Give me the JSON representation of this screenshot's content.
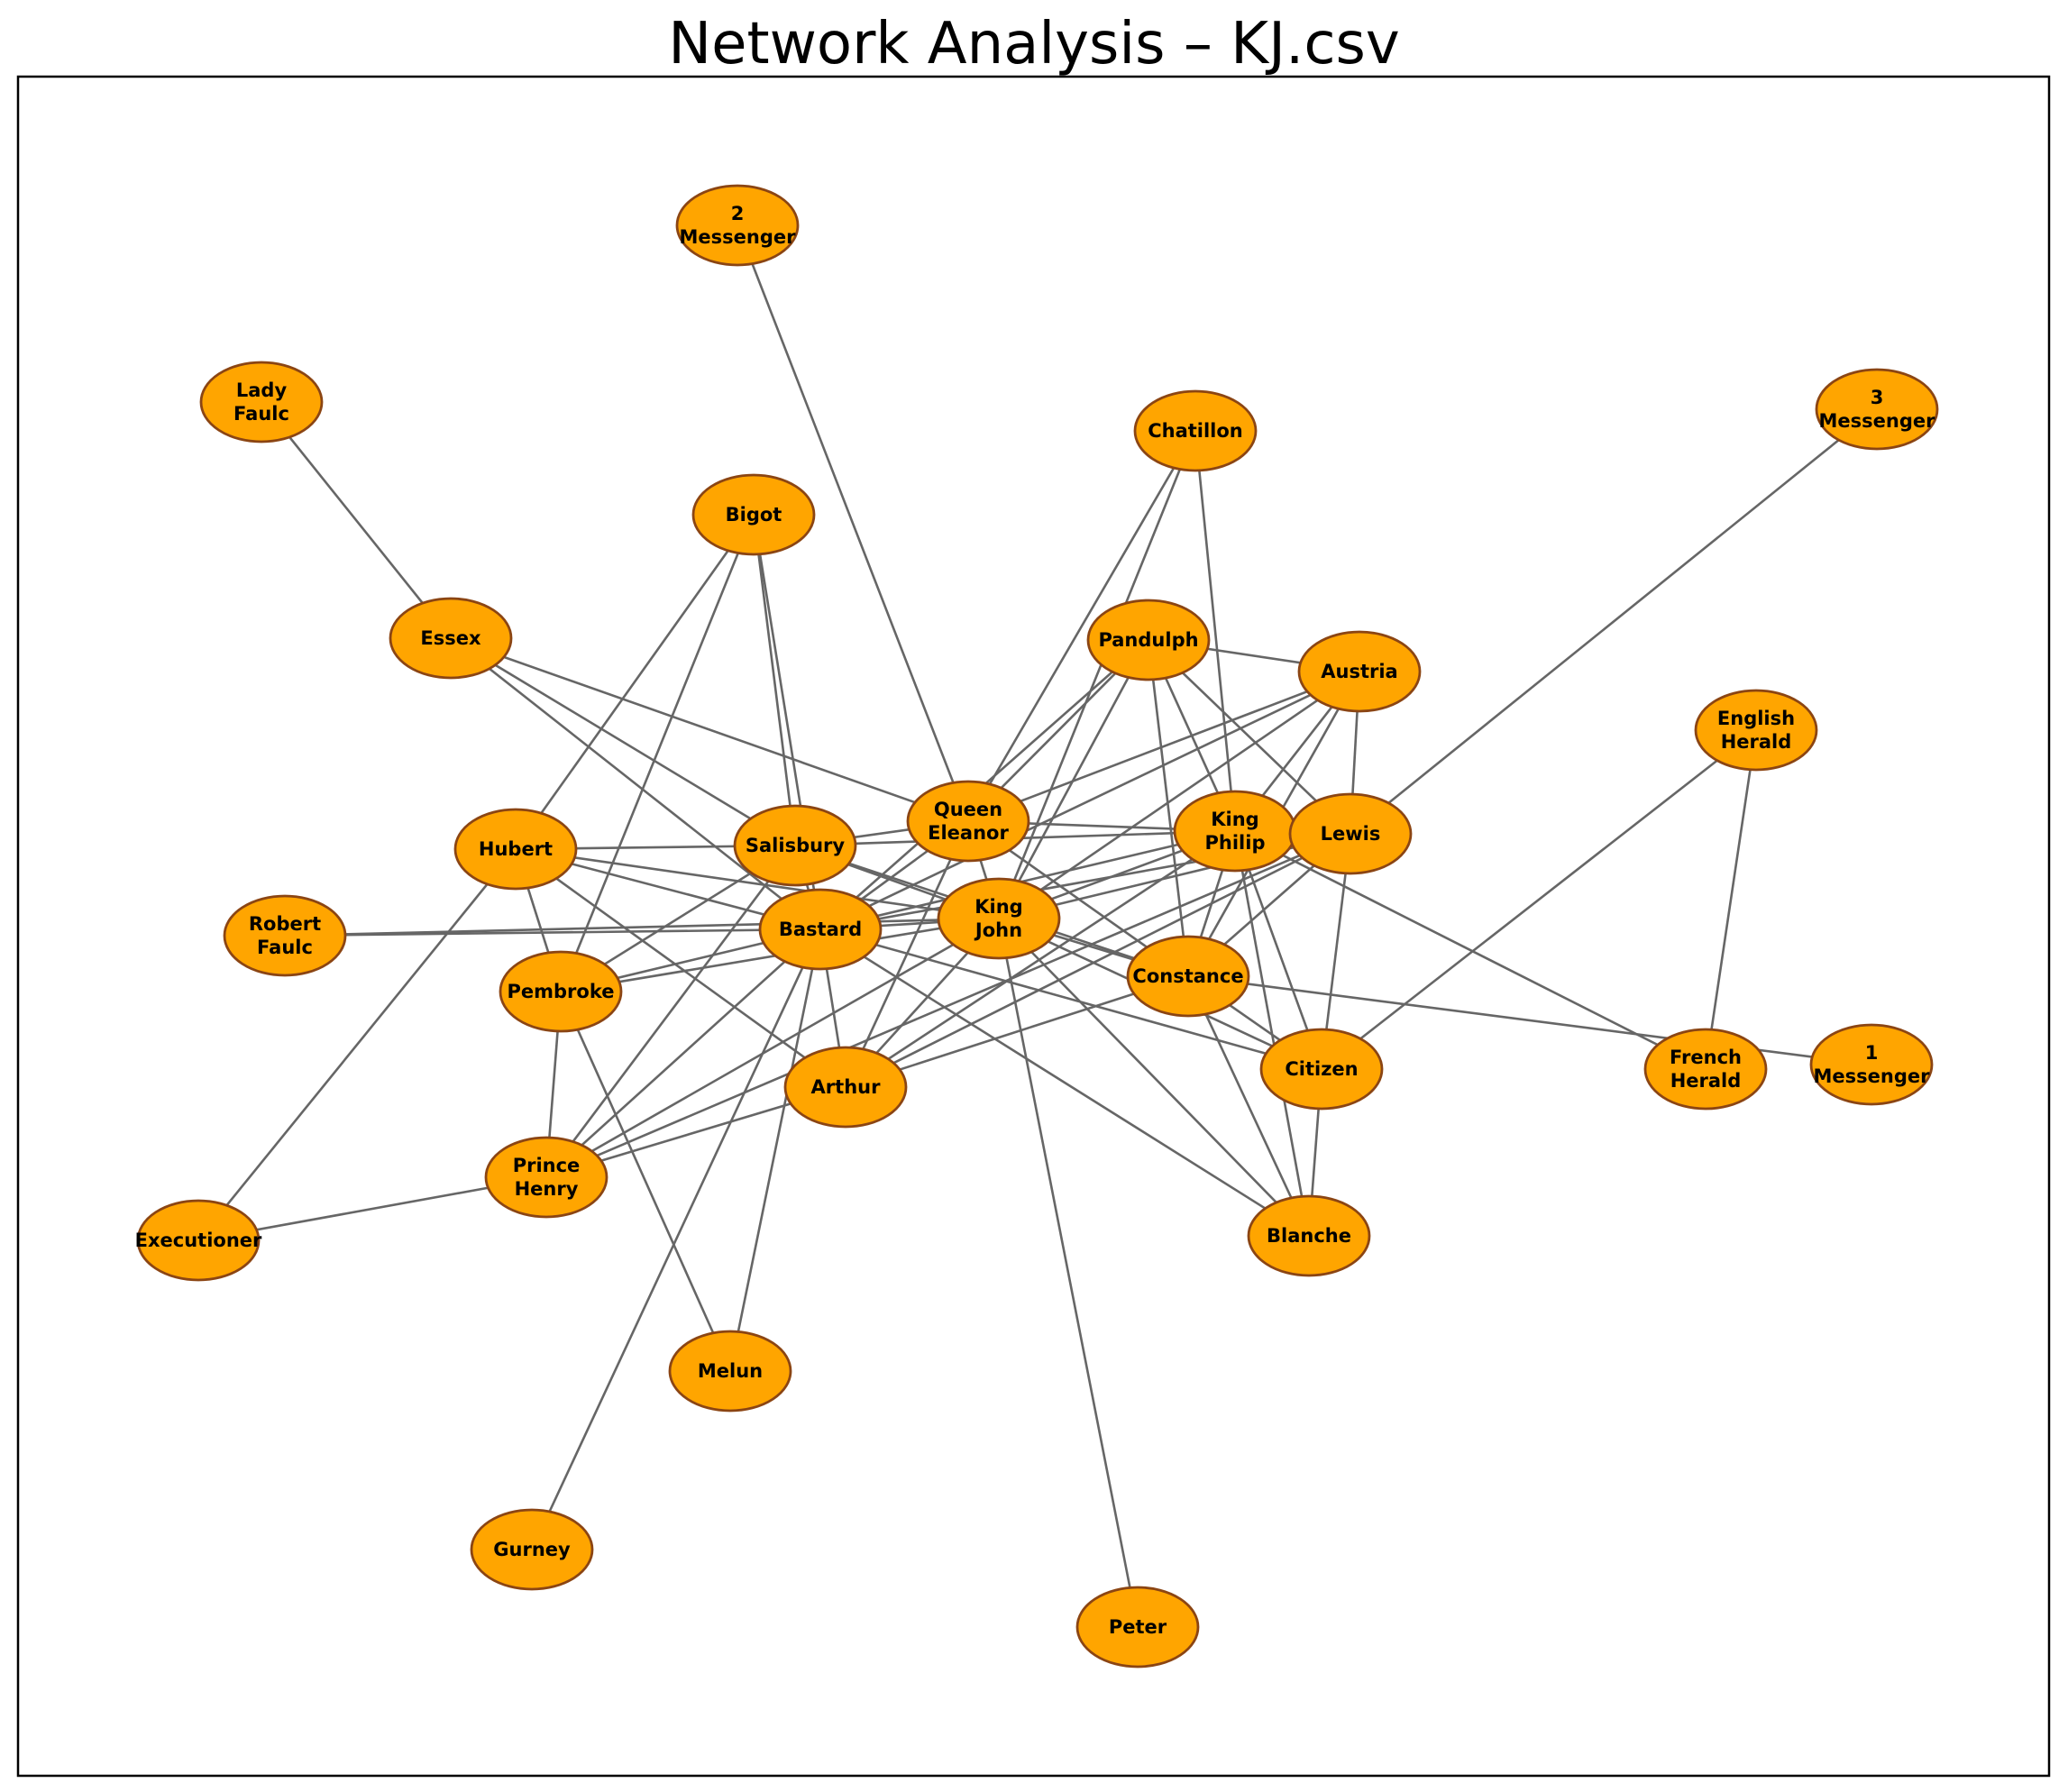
{
  "title": "Network Analysis – KJ.csv",
  "colors": {
    "node_fill": "#FFA500",
    "node_stroke": "#8B4513",
    "edge": "#666666",
    "label": "#000000"
  },
  "nodes": [
    {
      "id": "2 Messenger",
      "lines": [
        "2",
        "Messenger"
      ]
    },
    {
      "id": "Lady Faulc",
      "lines": [
        "Lady",
        "Faulc"
      ]
    },
    {
      "id": "3 Messenger",
      "lines": [
        "3",
        "Messenger"
      ]
    },
    {
      "id": "Chatillon",
      "lines": [
        "Chatillon"
      ]
    },
    {
      "id": "Bigot",
      "lines": [
        "Bigot"
      ]
    },
    {
      "id": "Essex",
      "lines": [
        "Essex"
      ]
    },
    {
      "id": "Pandulph",
      "lines": [
        "Pandulph"
      ]
    },
    {
      "id": "Austria",
      "lines": [
        "Austria"
      ]
    },
    {
      "id": "English Herald",
      "lines": [
        "English",
        "Herald"
      ]
    },
    {
      "id": "Queen Eleanor",
      "lines": [
        "Queen",
        "Eleanor"
      ]
    },
    {
      "id": "King Philip",
      "lines": [
        "King",
        "Philip"
      ]
    },
    {
      "id": "Lewis",
      "lines": [
        "Lewis"
      ]
    },
    {
      "id": "Salisbury",
      "lines": [
        "Salisbury"
      ]
    },
    {
      "id": "Hubert",
      "lines": [
        "Hubert"
      ]
    },
    {
      "id": "King John",
      "lines": [
        "King",
        "John"
      ]
    },
    {
      "id": "Bastard",
      "lines": [
        "Bastard"
      ]
    },
    {
      "id": "Robert Faulc",
      "lines": [
        "Robert",
        "Faulc"
      ]
    },
    {
      "id": "Constance",
      "lines": [
        "Constance"
      ]
    },
    {
      "id": "Pembroke",
      "lines": [
        "Pembroke"
      ]
    },
    {
      "id": "Citizen",
      "lines": [
        "Citizen"
      ]
    },
    {
      "id": "French Herald",
      "lines": [
        "French",
        "Herald"
      ]
    },
    {
      "id": "1 Messenger",
      "lines": [
        "1",
        "Messenger"
      ]
    },
    {
      "id": "Arthur",
      "lines": [
        "Arthur"
      ]
    },
    {
      "id": "Prince Henry",
      "lines": [
        "Prince",
        "Henry"
      ]
    },
    {
      "id": "Executioner",
      "lines": [
        "Executioner"
      ]
    },
    {
      "id": "Blanche",
      "lines": [
        "Blanche"
      ]
    },
    {
      "id": "Melun",
      "lines": [
        "Melun"
      ]
    },
    {
      "id": "Gurney",
      "lines": [
        "Gurney"
      ]
    },
    {
      "id": "Peter",
      "lines": [
        "Peter"
      ]
    }
  ],
  "edges": [
    [
      "2 Messenger",
      "Queen Eleanor"
    ],
    [
      "Lady Faulc",
      "Essex"
    ],
    [
      "Essex",
      "Salisbury"
    ],
    [
      "Essex",
      "Queen Eleanor"
    ],
    [
      "Essex",
      "Bastard"
    ],
    [
      "3 Messenger",
      "Lewis"
    ],
    [
      "Chatillon",
      "Queen Eleanor"
    ],
    [
      "Chatillon",
      "King John"
    ],
    [
      "Chatillon",
      "King Philip"
    ],
    [
      "Bigot",
      "Hubert"
    ],
    [
      "Bigot",
      "Salisbury"
    ],
    [
      "Bigot",
      "Bastard"
    ],
    [
      "Bigot",
      "Pembroke"
    ],
    [
      "Pandulph",
      "Austria"
    ],
    [
      "Pandulph",
      "Queen Eleanor"
    ],
    [
      "Pandulph",
      "King John"
    ],
    [
      "Pandulph",
      "King Philip"
    ],
    [
      "Pandulph",
      "Lewis"
    ],
    [
      "Pandulph",
      "Constance"
    ],
    [
      "Pandulph",
      "Bastard"
    ],
    [
      "Austria",
      "Queen Eleanor"
    ],
    [
      "Austria",
      "King Philip"
    ],
    [
      "Austria",
      "Lewis"
    ],
    [
      "Austria",
      "King John"
    ],
    [
      "Austria",
      "Bastard"
    ],
    [
      "Austria",
      "Constance"
    ],
    [
      "English Herald",
      "French Herald"
    ],
    [
      "English Herald",
      "Citizen"
    ],
    [
      "Queen Eleanor",
      "King Philip"
    ],
    [
      "Queen Eleanor",
      "King John"
    ],
    [
      "Queen Eleanor",
      "Bastard"
    ],
    [
      "Queen Eleanor",
      "Constance"
    ],
    [
      "Queen Eleanor",
      "Arthur"
    ],
    [
      "Queen Eleanor",
      "Salisbury"
    ],
    [
      "King Philip",
      "Lewis"
    ],
    [
      "King Philip",
      "King John"
    ],
    [
      "King Philip",
      "Bastard"
    ],
    [
      "King Philip",
      "Constance"
    ],
    [
      "King Philip",
      "Citizen"
    ],
    [
      "King Philip",
      "Arthur"
    ],
    [
      "King Philip",
      "Blanche"
    ],
    [
      "King Philip",
      "Salisbury"
    ],
    [
      "King Philip",
      "French Herald"
    ],
    [
      "Lewis",
      "King John"
    ],
    [
      "Lewis",
      "Bastard"
    ],
    [
      "Lewis",
      "Constance"
    ],
    [
      "Lewis",
      "Citizen"
    ],
    [
      "Lewis",
      "Prince Henry"
    ],
    [
      "Lewis",
      "Arthur"
    ],
    [
      "Salisbury",
      "Hubert"
    ],
    [
      "Salisbury",
      "King John"
    ],
    [
      "Salisbury",
      "Bastard"
    ],
    [
      "Salisbury",
      "Pembroke"
    ],
    [
      "Salisbury",
      "Prince Henry"
    ],
    [
      "Salisbury",
      "Constance"
    ],
    [
      "Hubert",
      "King John"
    ],
    [
      "Hubert",
      "Bastard"
    ],
    [
      "Hubert",
      "Pembroke"
    ],
    [
      "Hubert",
      "Arthur"
    ],
    [
      "Hubert",
      "Executioner"
    ],
    [
      "King John",
      "Bastard"
    ],
    [
      "King John",
      "Robert Faulc"
    ],
    [
      "King John",
      "Constance"
    ],
    [
      "King John",
      "Pembroke"
    ],
    [
      "King John",
      "Arthur"
    ],
    [
      "King John",
      "Blanche"
    ],
    [
      "King John",
      "Peter"
    ],
    [
      "King John",
      "Prince Henry"
    ],
    [
      "King John",
      "Citizen"
    ],
    [
      "Bastard",
      "Robert Faulc"
    ],
    [
      "Bastard",
      "Pembroke"
    ],
    [
      "Bastard",
      "Arthur"
    ],
    [
      "Bastard",
      "Citizen"
    ],
    [
      "Bastard",
      "Blanche"
    ],
    [
      "Bastard",
      "Prince Henry"
    ],
    [
      "Bastard",
      "Melun"
    ],
    [
      "Bastard",
      "Gurney"
    ],
    [
      "Constance",
      "Arthur"
    ],
    [
      "Constance",
      "Citizen"
    ],
    [
      "Constance",
      "Blanche"
    ],
    [
      "Constance",
      "1 Messenger"
    ],
    [
      "Pembroke",
      "Prince Henry"
    ],
    [
      "Pembroke",
      "Melun"
    ],
    [
      "Citizen",
      "Blanche"
    ],
    [
      "Arthur",
      "Prince Henry"
    ],
    [
      "Prince Henry",
      "Executioner"
    ]
  ]
}
